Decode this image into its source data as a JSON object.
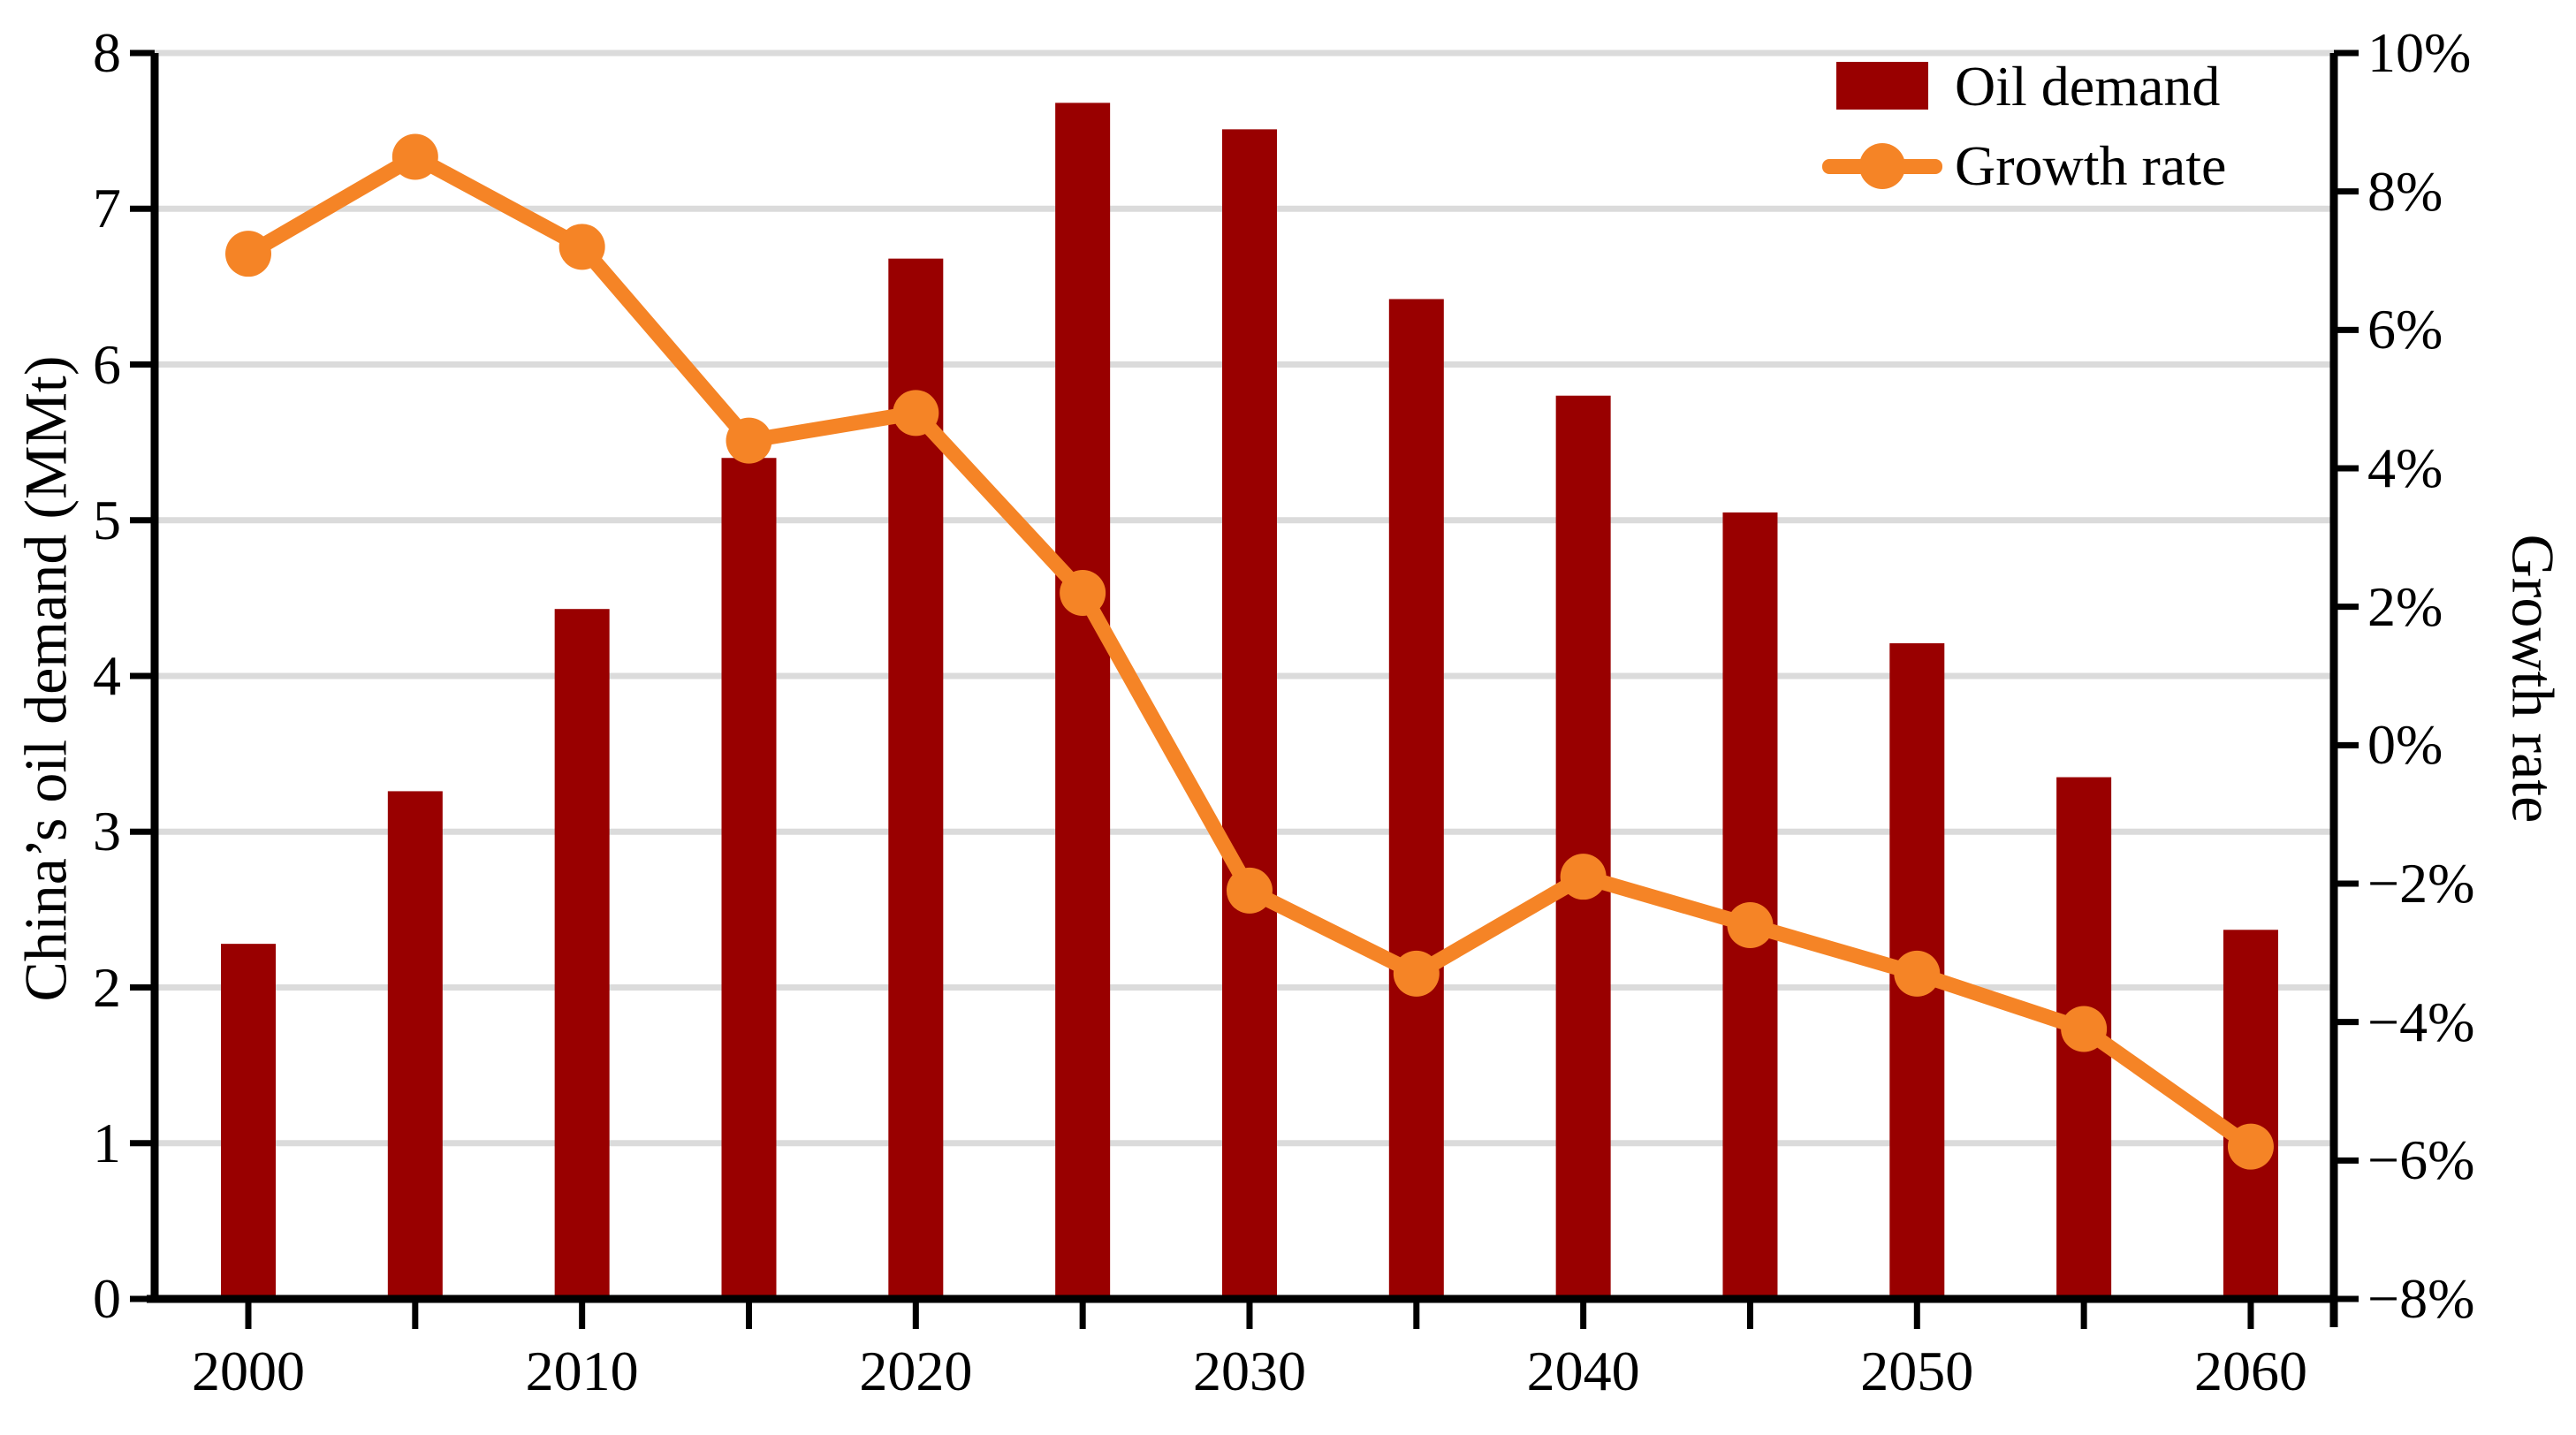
{
  "chart_data": {
    "type": "bar",
    "categories": [
      2000,
      2005,
      2010,
      2015,
      2020,
      2025,
      2030,
      2035,
      2040,
      2045,
      2050,
      2055,
      2060
    ],
    "series": [
      {
        "name": "Oil demand",
        "type": "bar",
        "axis": "left",
        "values": [
          2.28,
          3.26,
          4.43,
          5.4,
          6.68,
          7.68,
          7.51,
          6.42,
          5.8,
          5.05,
          4.21,
          3.35,
          2.37
        ]
      },
      {
        "name": "Growth rate",
        "type": "line",
        "axis": "right",
        "values": [
          7.1,
          8.5,
          7.2,
          4.4,
          4.8,
          2.2,
          -2.1,
          -3.3,
          -1.9,
          -2.6,
          -3.3,
          -4.1,
          -5.8
        ]
      }
    ],
    "left_axis": {
      "label": "China’s oil demand (MMt)",
      "min": 0,
      "max": 8,
      "tick_step": 1,
      "tick_labels": [
        "0",
        "1",
        "2",
        "3",
        "4",
        "5",
        "6",
        "7",
        "8"
      ]
    },
    "right_axis": {
      "label": "Growth rate",
      "min": -8,
      "max": 10,
      "tick_step": 2,
      "tick_labels": [
        "−8%",
        "−6%",
        "−4%",
        "−2%",
        "0%",
        "2%",
        "4%",
        "6%",
        "8%",
        "10%"
      ]
    },
    "x_axis": {
      "tick_years": [
        2000,
        2005,
        2010,
        2015,
        2020,
        2025,
        2030,
        2035,
        2040,
        2045,
        2050,
        2055,
        2060
      ],
      "labeled_years": [
        "2000",
        "2010",
        "2020",
        "2030",
        "2040",
        "2050",
        "2060"
      ]
    },
    "legend": {
      "position": "top-right",
      "items": [
        {
          "label": "Oil demand",
          "symbol": "filled-rect"
        },
        {
          "label": "Growth rate",
          "symbol": "line-with-dot"
        }
      ]
    },
    "grid": {
      "horizontal": true,
      "at_left_axis_integers": true
    },
    "colors": {
      "bar": "#990000",
      "line": "#F58426",
      "grid": "#DBDBDB",
      "axis": "#000000",
      "background": "#FFFFFF"
    }
  }
}
